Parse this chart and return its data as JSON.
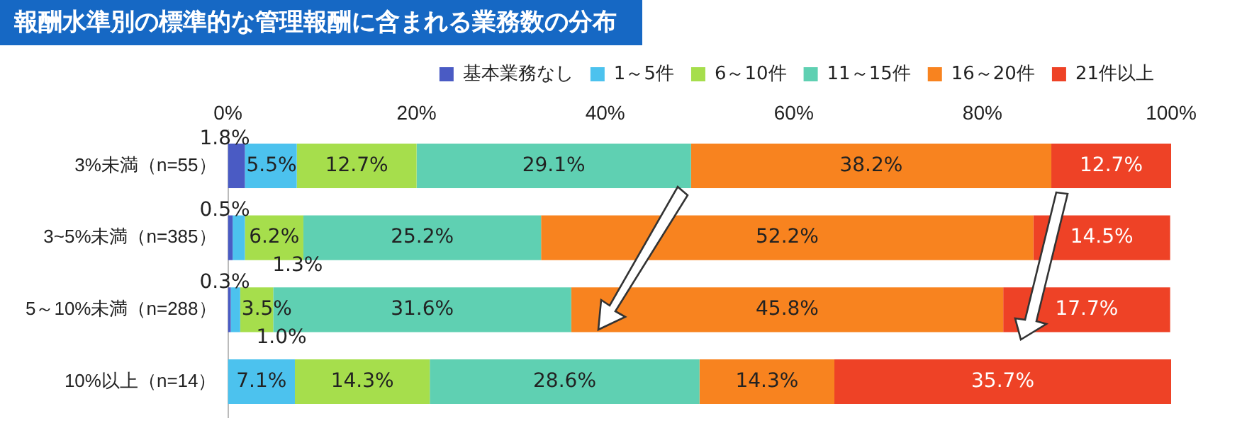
{
  "chart_data": {
    "type": "bar",
    "orientation": "horizontal",
    "stacked": true,
    "title": "報酬水準別の標準的な管理報酬に含まれる業務数の分布",
    "categories": [
      "3%未満（n=55）",
      "3~5%未満（n=385）",
      "5～10%未満（n=288）",
      "10%以上（n=14）"
    ],
    "xlim": [
      0,
      100
    ],
    "xticks": [
      {
        "value": 0,
        "label": "0%"
      },
      {
        "value": 20,
        "label": "20%"
      },
      {
        "value": 40,
        "label": "40%"
      },
      {
        "value": 60,
        "label": "60%"
      },
      {
        "value": 80,
        "label": "80%"
      },
      {
        "value": 100,
        "label": "100%"
      }
    ],
    "legend": "top right",
    "grid": false,
    "series": [
      {
        "name": "基本業務なし",
        "color": "#4a5bc4",
        "values": [
          1.8,
          0.5,
          0.3,
          null
        ],
        "value_labels": [
          "1.8%",
          "0.5%",
          "0.3%",
          null
        ]
      },
      {
        "name": "1～5件",
        "color": "#4cc2ee",
        "values": [
          5.5,
          1.3,
          1.0,
          7.1
        ],
        "value_labels": [
          "5.5%",
          "1.3%",
          "1.0%",
          "7.1%"
        ]
      },
      {
        "name": "6～10件",
        "color": "#a6de4c",
        "values": [
          12.7,
          6.2,
          3.5,
          14.3
        ],
        "value_labels": [
          "12.7%",
          "6.2%",
          "3.5%",
          "14.3%"
        ]
      },
      {
        "name": "11～15件",
        "color": "#5fd0b2",
        "values": [
          29.1,
          25.2,
          31.6,
          28.6
        ],
        "value_labels": [
          "29.1%",
          "25.2%",
          "31.6%",
          "28.6%"
        ]
      },
      {
        "name": "16～20件",
        "color": "#f8831f",
        "values": [
          38.2,
          52.2,
          45.8,
          14.3
        ],
        "value_labels": [
          "38.2%",
          "52.2%",
          "45.8%",
          "14.3%"
        ]
      },
      {
        "name": "21件以上",
        "color": "#ee4226",
        "values": [
          12.7,
          14.5,
          17.7,
          35.7
        ],
        "value_labels": [
          "12.7%",
          "14.5%",
          "17.7%",
          "35.7%"
        ]
      }
    ]
  }
}
